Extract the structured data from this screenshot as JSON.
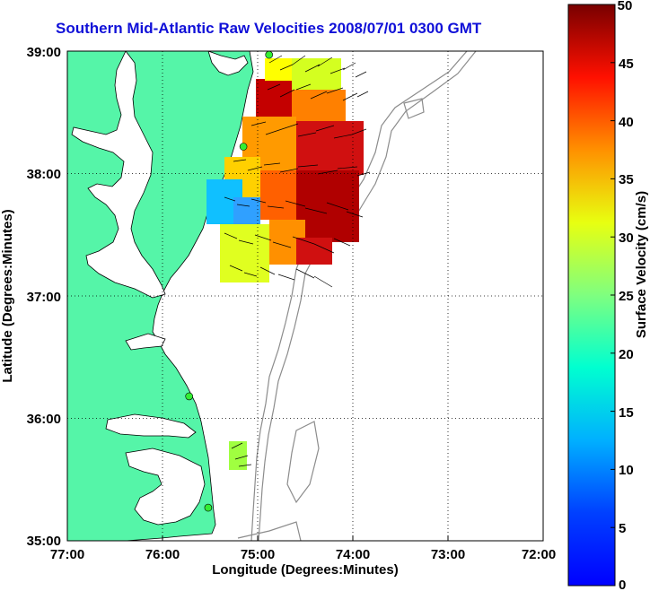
{
  "title": "Southern Mid-Atlantic Raw Velocities 2008/07/01 0300 GMT",
  "map": {
    "xlabel": "Longitude (Degrees:Minutes)",
    "ylabel": "Latitude (Degrees:Minutes)",
    "x_ticks": [
      "77:00",
      "76:00",
      "75:00",
      "74:00",
      "73:00",
      "72:00"
    ],
    "y_ticks": [
      "39:00",
      "38:00",
      "37:00",
      "36:00",
      "35:00"
    ],
    "lon_range": [
      -77.0,
      -72.0
    ],
    "lat_range": [
      35.0,
      39.0
    ],
    "grid": "dotted",
    "land_color": "#55f5a8",
    "stations": [
      {
        "lon": -74.88,
        "lat": 38.97
      },
      {
        "lon": -75.15,
        "lat": 38.22
      },
      {
        "lon": -75.72,
        "lat": 36.18
      },
      {
        "lon": -75.52,
        "lat": 35.27
      }
    ]
  },
  "colorbar": {
    "label": "Surface Velocity (cm/s)",
    "ticks": [
      "50",
      "45",
      "40",
      "35",
      "30",
      "25",
      "20",
      "15",
      "10",
      "5",
      "0"
    ],
    "min": 0,
    "max": 50,
    "colormap": "jet"
  }
}
